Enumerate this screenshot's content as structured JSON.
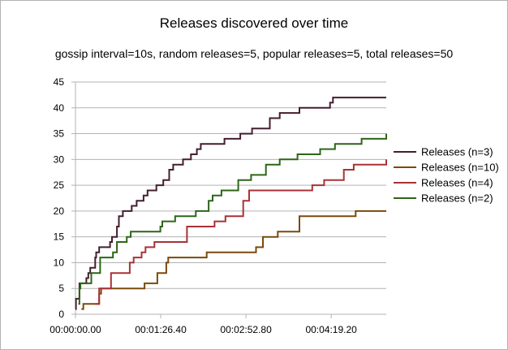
{
  "chart_data": {
    "type": "line",
    "title": "Releases discovered over time",
    "subtitle": "gossip interval=10s, random releases=5, popular releases=5, total releases=50",
    "xlabel": "",
    "ylabel": "",
    "x_unit": "seconds",
    "xlim": [
      0,
      315
    ],
    "ylim": [
      0,
      45
    ],
    "y_ticks": [
      0,
      5,
      10,
      15,
      20,
      25,
      30,
      35,
      40,
      45
    ],
    "x_ticks": [
      {
        "value": 0,
        "label": "00:00:00.00"
      },
      {
        "value": 86.4,
        "label": "00:01:26.40"
      },
      {
        "value": 172.8,
        "label": "00:02:52.80"
      },
      {
        "value": 259.2,
        "label": "00:04:19.20"
      }
    ],
    "grid": "horizontal",
    "legend_position": "right",
    "series": [
      {
        "name": "Releases (n=3)",
        "color": "#441e30",
        "points": [
          [
            0,
            1
          ],
          [
            0.5,
            3
          ],
          [
            3,
            3
          ],
          [
            4,
            6
          ],
          [
            10,
            6
          ],
          [
            11,
            7
          ],
          [
            13,
            8
          ],
          [
            15,
            9
          ],
          [
            20,
            11
          ],
          [
            21,
            12
          ],
          [
            24,
            13
          ],
          [
            35,
            14
          ],
          [
            37,
            15
          ],
          [
            42,
            17
          ],
          [
            44,
            19
          ],
          [
            48,
            20
          ],
          [
            57,
            21
          ],
          [
            62,
            22
          ],
          [
            67,
            22
          ],
          [
            69,
            23
          ],
          [
            73,
            24
          ],
          [
            79,
            24
          ],
          [
            82,
            25
          ],
          [
            89,
            26
          ],
          [
            95,
            28
          ],
          [
            99,
            29
          ],
          [
            109,
            30
          ],
          [
            117,
            31
          ],
          [
            123,
            32
          ],
          [
            127,
            33
          ],
          [
            140,
            33
          ],
          [
            151,
            34
          ],
          [
            165,
            34
          ],
          [
            167,
            35
          ],
          [
            173,
            35
          ],
          [
            179,
            36
          ],
          [
            195,
            36
          ],
          [
            197,
            38
          ],
          [
            205,
            38
          ],
          [
            207,
            39
          ],
          [
            225,
            39
          ],
          [
            227,
            40
          ],
          [
            257,
            40
          ],
          [
            258,
            41
          ],
          [
            261,
            42
          ],
          [
            315,
            42
          ]
        ]
      },
      {
        "name": "Releases (n=10)",
        "color": "#7a4a0c",
        "points": [
          [
            6,
            1
          ],
          [
            8,
            2
          ],
          [
            23,
            2
          ],
          [
            24,
            4
          ],
          [
            26,
            5
          ],
          [
            68,
            5
          ],
          [
            70,
            6
          ],
          [
            80,
            6
          ],
          [
            83,
            8
          ],
          [
            90,
            8
          ],
          [
            92,
            10
          ],
          [
            94,
            11
          ],
          [
            131,
            11
          ],
          [
            133,
            12
          ],
          [
            181,
            12
          ],
          [
            183,
            13
          ],
          [
            189,
            13
          ],
          [
            190,
            15
          ],
          [
            203,
            15
          ],
          [
            205,
            16
          ],
          [
            225,
            16
          ],
          [
            227,
            19
          ],
          [
            282,
            19
          ],
          [
            284,
            20
          ],
          [
            315,
            20
          ]
        ]
      },
      {
        "name": "Releases (n=4)",
        "color": "#a83236",
        "points": [
          [
            20,
            2
          ],
          [
            24,
            5
          ],
          [
            35,
            5
          ],
          [
            36,
            8
          ],
          [
            54,
            8
          ],
          [
            55,
            10
          ],
          [
            59,
            11
          ],
          [
            65,
            11
          ],
          [
            67,
            12
          ],
          [
            71,
            13
          ],
          [
            79,
            13
          ],
          [
            80,
            14
          ],
          [
            110,
            14
          ],
          [
            113,
            17
          ],
          [
            140,
            17
          ],
          [
            141,
            18
          ],
          [
            151,
            18
          ],
          [
            152,
            19
          ],
          [
            169,
            19
          ],
          [
            170,
            22
          ],
          [
            175,
            22
          ],
          [
            176,
            24
          ],
          [
            239,
            24
          ],
          [
            240,
            25
          ],
          [
            250,
            25
          ],
          [
            252,
            26
          ],
          [
            270,
            26
          ],
          [
            272,
            28
          ],
          [
            281,
            28
          ],
          [
            282,
            29
          ],
          [
            313,
            29
          ],
          [
            315,
            30
          ]
        ]
      },
      {
        "name": "Releases (n=2)",
        "color": "#2d6518",
        "points": [
          [
            3,
            2
          ],
          [
            4,
            5
          ],
          [
            5,
            6
          ],
          [
            14,
            6
          ],
          [
            16,
            8
          ],
          [
            24,
            8
          ],
          [
            25,
            11
          ],
          [
            36,
            11
          ],
          [
            38,
            12
          ],
          [
            41,
            12
          ],
          [
            42,
            14
          ],
          [
            50,
            14
          ],
          [
            52,
            15
          ],
          [
            56,
            16
          ],
          [
            84,
            16
          ],
          [
            86,
            17
          ],
          [
            88,
            18
          ],
          [
            99,
            18
          ],
          [
            101,
            19
          ],
          [
            120,
            19
          ],
          [
            122,
            20
          ],
          [
            132,
            20
          ],
          [
            135,
            22
          ],
          [
            139,
            23
          ],
          [
            145,
            23
          ],
          [
            148,
            24
          ],
          [
            163,
            24
          ],
          [
            165,
            26
          ],
          [
            175,
            26
          ],
          [
            178,
            27
          ],
          [
            191,
            27
          ],
          [
            193,
            29
          ],
          [
            205,
            29
          ],
          [
            207,
            30
          ],
          [
            223,
            30
          ],
          [
            225,
            31
          ],
          [
            246,
            31
          ],
          [
            248,
            32
          ],
          [
            261,
            32
          ],
          [
            263,
            33
          ],
          [
            288,
            33
          ],
          [
            290,
            34
          ],
          [
            312,
            34
          ],
          [
            315,
            35
          ]
        ]
      }
    ]
  }
}
